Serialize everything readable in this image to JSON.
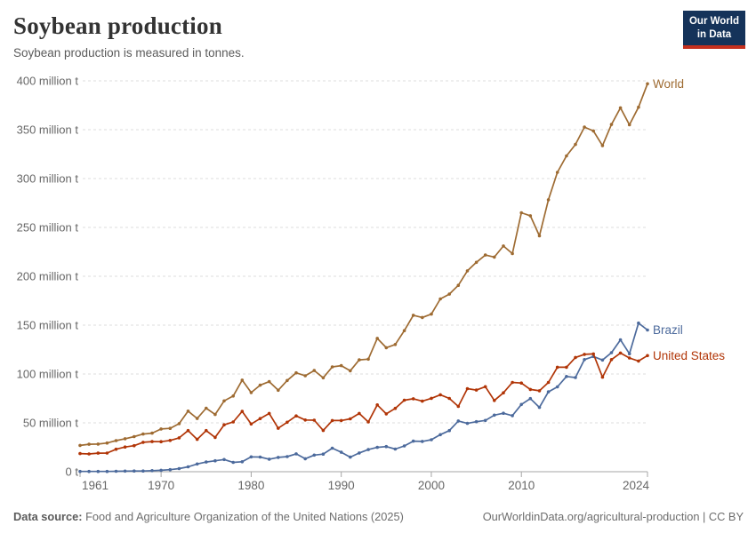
{
  "header": {
    "title": "Soybean production",
    "subtitle": "Soybean production is measured in tonnes."
  },
  "logo": {
    "line1": "Our World",
    "line2": "in Data",
    "bg_color": "#15335a",
    "accent_color": "#c5301e"
  },
  "footer": {
    "source_label": "Data source:",
    "source_text": " Food and Agriculture Organization of the United Nations (2025)",
    "right_text": "OurWorldinData.org/agricultural-production | CC BY"
  },
  "chart_data": {
    "type": "line",
    "title": "Soybean production",
    "unit": "tonnes",
    "xlim": [
      1961,
      2024
    ],
    "ylim": [
      0,
      400
    ],
    "grid": "horizontal-dashed",
    "grid_color": "#dddddd",
    "axis_color": "#a5a5a5",
    "tick_label_color": "#676767",
    "legend_position": "end-of-line-labels",
    "x": [
      1961,
      1962,
      1963,
      1964,
      1965,
      1966,
      1967,
      1968,
      1969,
      1970,
      1971,
      1972,
      1973,
      1974,
      1975,
      1976,
      1977,
      1978,
      1979,
      1980,
      1981,
      1982,
      1983,
      1984,
      1985,
      1986,
      1987,
      1988,
      1989,
      1990,
      1991,
      1992,
      1993,
      1994,
      1995,
      1996,
      1997,
      1998,
      1999,
      2000,
      2001,
      2002,
      2003,
      2004,
      2005,
      2006,
      2007,
      2008,
      2009,
      2010,
      2011,
      2012,
      2013,
      2014,
      2015,
      2016,
      2017,
      2018,
      2019,
      2020,
      2021,
      2022,
      2023,
      2024
    ],
    "xticks": [
      1961,
      1970,
      1980,
      1990,
      2000,
      2010,
      2024
    ],
    "yticks": [
      0,
      50,
      100,
      150,
      200,
      250,
      300,
      350,
      400
    ],
    "ytick_labels": [
      "0 t",
      "50 million t",
      "100 million t",
      "150 million t",
      "200 million t",
      "250 million t",
      "300 million t",
      "350 million t",
      "400 million t"
    ],
    "values_unit": "million tonnes",
    "series": [
      {
        "name": "World",
        "color": "#9e6b32",
        "values": [
          26.9,
          28.1,
          28.3,
          29.4,
          31.8,
          33.7,
          35.9,
          38.5,
          39.5,
          43.7,
          44.4,
          49.2,
          62.0,
          54.5,
          65.0,
          58.5,
          72.5,
          77.5,
          93.7,
          81.0,
          88.5,
          92.2,
          83.4,
          93.4,
          101.2,
          98.2,
          103.5,
          96.1,
          107.3,
          108.5,
          103.3,
          114.5,
          115.2,
          136.5,
          126.9,
          130.2,
          144.4,
          160.1,
          157.8,
          161.3,
          176.8,
          181.7,
          190.7,
          205.5,
          214.3,
          221.7,
          219.6,
          231.0,
          223.2,
          265.0,
          261.9,
          241.4,
          278.3,
          306.4,
          323.2,
          334.9,
          352.6,
          348.7,
          333.7,
          355.4,
          372.4,
          355.0,
          373.0,
          397.0
        ]
      },
      {
        "name": "Brazil",
        "color": "#4c6a9c",
        "values": [
          0.3,
          0.3,
          0.3,
          0.3,
          0.5,
          0.6,
          0.7,
          0.7,
          1.1,
          1.5,
          2.1,
          3.2,
          5.0,
          7.9,
          9.9,
          11.2,
          12.5,
          9.5,
          10.2,
          15.2,
          15.0,
          12.8,
          14.6,
          15.5,
          18.3,
          13.3,
          17.0,
          18.0,
          24.1,
          19.9,
          14.9,
          19.2,
          22.6,
          24.9,
          25.7,
          23.2,
          26.4,
          31.3,
          31.0,
          32.7,
          37.9,
          42.1,
          51.9,
          49.5,
          51.2,
          52.5,
          57.9,
          59.8,
          57.4,
          68.8,
          74.8,
          65.8,
          81.7,
          86.8,
          97.5,
          96.4,
          114.7,
          117.9,
          114.3,
          121.8,
          134.9,
          120.7,
          152.1,
          145.0
        ]
      },
      {
        "name": "United States",
        "color": "#b13507",
        "values": [
          18.5,
          18.2,
          19.0,
          19.1,
          23.0,
          25.3,
          26.6,
          30.1,
          30.8,
          30.7,
          32.0,
          34.6,
          42.1,
          33.1,
          42.1,
          35.1,
          48.0,
          50.9,
          61.7,
          48.8,
          54.4,
          59.6,
          44.5,
          50.6,
          57.1,
          52.9,
          52.7,
          42.2,
          52.4,
          52.4,
          54.1,
          59.6,
          50.9,
          68.4,
          59.2,
          64.8,
          73.2,
          74.6,
          72.2,
          75.1,
          78.7,
          75.0,
          66.8,
          85.0,
          83.5,
          87.0,
          72.9,
          80.7,
          91.4,
          90.7,
          84.2,
          82.8,
          91.4,
          106.9,
          106.9,
          116.9,
          120.1,
          120.5,
          96.7,
          114.7,
          121.5,
          116.4,
          113.3,
          118.8
        ]
      }
    ]
  }
}
